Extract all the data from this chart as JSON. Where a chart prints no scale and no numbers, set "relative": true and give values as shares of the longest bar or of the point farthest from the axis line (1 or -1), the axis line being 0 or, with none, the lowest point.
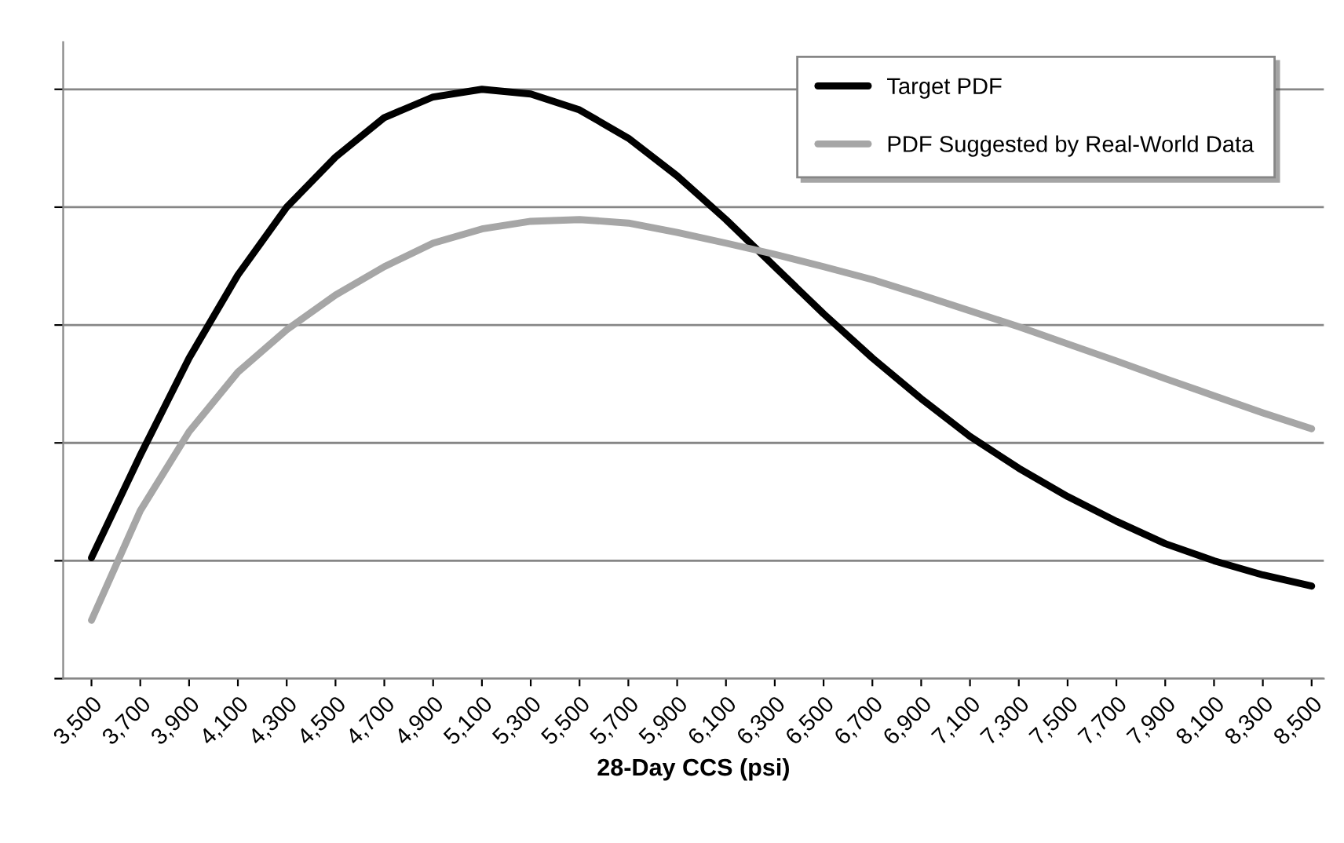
{
  "chart_data": {
    "type": "line",
    "relative": true,
    "xlabel": "28-Day CCS (psi)",
    "categories": [
      "3,500",
      "3,700",
      "3,900",
      "4,100",
      "4,300",
      "4,500",
      "4,700",
      "4,900",
      "5,100",
      "5,300",
      "5,500",
      "5,700",
      "5,900",
      "6,100",
      "6,300",
      "6,500",
      "6,700",
      "6,900",
      "7,100",
      "7,300",
      "7,500",
      "7,700",
      "7,900",
      "8,100",
      "8,300",
      "8,500"
    ],
    "series": [
      {
        "name": "Target PDF",
        "color": "#000000",
        "values": [
          0.205,
          0.379,
          0.544,
          0.685,
          0.8,
          0.885,
          0.952,
          0.987,
          1,
          0.992,
          0.965,
          0.917,
          0.853,
          0.779,
          0.699,
          0.619,
          0.544,
          0.475,
          0.411,
          0.357,
          0.309,
          0.267,
          0.229,
          0.2,
          0.176,
          0.157
        ]
      },
      {
        "name": "PDF Suggested by Real-World Data",
        "color": "#a6a6a6",
        "values": [
          0.099,
          0.285,
          0.419,
          0.52,
          0.592,
          0.651,
          0.699,
          0.739,
          0.763,
          0.776,
          0.779,
          0.773,
          0.757,
          0.739,
          0.72,
          0.699,
          0.677,
          0.651,
          0.624,
          0.597,
          0.568,
          0.539,
          0.509,
          0.48,
          0.451,
          0.424
        ]
      }
    ],
    "grid": "y",
    "legend": "top right",
    "marker": "none",
    "line_style": "solid"
  }
}
